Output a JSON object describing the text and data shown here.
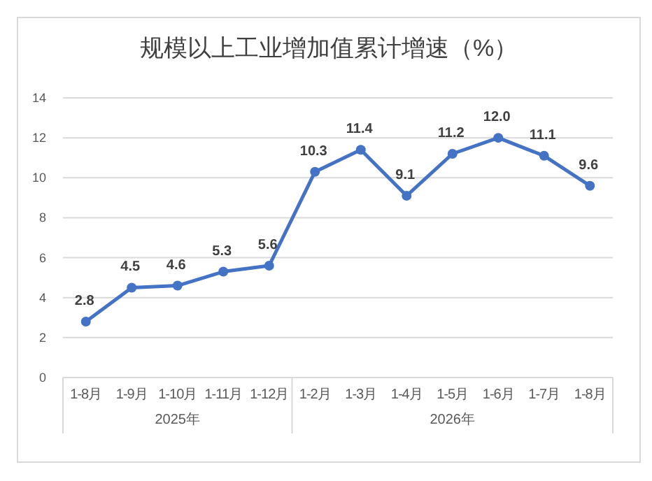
{
  "chart_data": {
    "type": "line",
    "title": "规模以上工业增加值累计增速（%）",
    "categories": [
      "1-8月",
      "1-9月",
      "1-10月",
      "1-11月",
      "1-12月",
      "1-2月",
      "1-3月",
      "1-4月",
      "1-5月",
      "1-6月",
      "1-7月",
      "1-8月"
    ],
    "series": [
      {
        "color": "#4472c4",
        "values": [
          2.8,
          4.5,
          4.6,
          5.3,
          5.6,
          10.3,
          11.4,
          9.1,
          11.2,
          12.0,
          11.1,
          9.6
        ],
        "value_labels": [
          "2.8",
          "4.5",
          "4.6",
          "5.3",
          "5.6",
          "10.3",
          "11.4",
          "9.1",
          "11.2",
          "12.0",
          "11.1",
          "9.6"
        ]
      }
    ],
    "annotations": [
      "2025年",
      "2026年"
    ],
    "ylim": [
      0,
      14
    ],
    "yticks": [
      0,
      2,
      4,
      6,
      8,
      10,
      12,
      14
    ],
    "grid": "y",
    "marker": "circle",
    "line_style": "solid"
  }
}
